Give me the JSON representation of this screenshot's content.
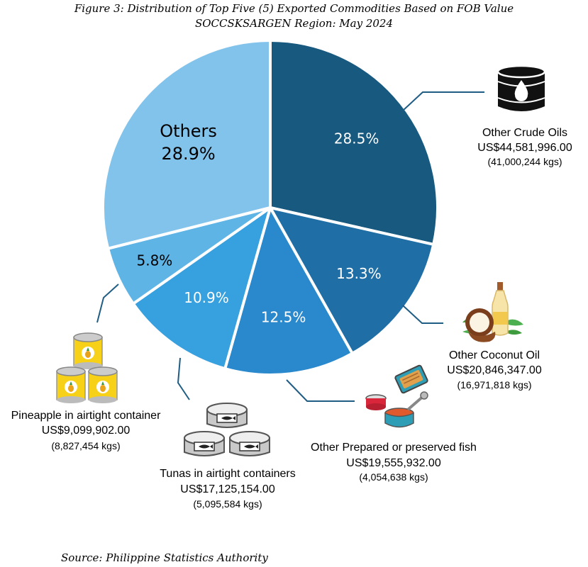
{
  "title": "Figure 3: Distribution of Top Five (5) Exported Commodities Based on FOB Value",
  "subtitle": "SOCCSKSARGEN Region: May 2024",
  "source": "Source: Philippine Statistics Authority",
  "colors": {
    "crude": "#17597f",
    "coconut": "#1f6fa6",
    "fish": "#2a88cc",
    "tuna": "#37a0de",
    "pineapple": "#5fb4e6",
    "others": "#82c3ec",
    "leader": "#1f5d84"
  },
  "chart_data": {
    "type": "pie",
    "title": "Figure 3: Distribution of Top Five (5) Exported Commodities Based on FOB Value",
    "subtitle": "SOCCSKSARGEN Region: May 2024",
    "slices": [
      {
        "key": "crude",
        "pct": 28.5,
        "label": "28.5%",
        "name": "Other Crude Oils",
        "value": "US$44,581,996.00",
        "qty": "(41,000,244 kgs)",
        "icon": "oil-barrel-icon"
      },
      {
        "key": "coconut",
        "pct": 13.3,
        "label": "13.3%",
        "name": "Other Coconut Oil",
        "value": "US$20,846,347.00",
        "qty": "(16,971,818 kgs)",
        "icon": "coconut-oil-icon"
      },
      {
        "key": "fish",
        "pct": 12.5,
        "label": "12.5%",
        "name": "Other Prepared or preserved fish",
        "value": "US$19,555,932.00",
        "qty": "(4,054,638 kgs)",
        "icon": "canned-fish-icon"
      },
      {
        "key": "tuna",
        "pct": 10.9,
        "label": "10.9%",
        "name": "Tunas in airtight containers",
        "value": "US$17,125,154.00",
        "qty": "(5,095,584 kgs)",
        "icon": "tuna-can-icon"
      },
      {
        "key": "pineapple",
        "pct": 5.8,
        "label": "5.8%",
        "name": "Pineapple in airtight container",
        "value": "US$9,099,902.00",
        "qty": "(8,827,454 kgs)",
        "icon": "pineapple-can-icon"
      },
      {
        "key": "others",
        "pct": 28.9,
        "label": "28.9%",
        "name": "Others",
        "value": "",
        "qty": "",
        "icon": ""
      }
    ]
  }
}
